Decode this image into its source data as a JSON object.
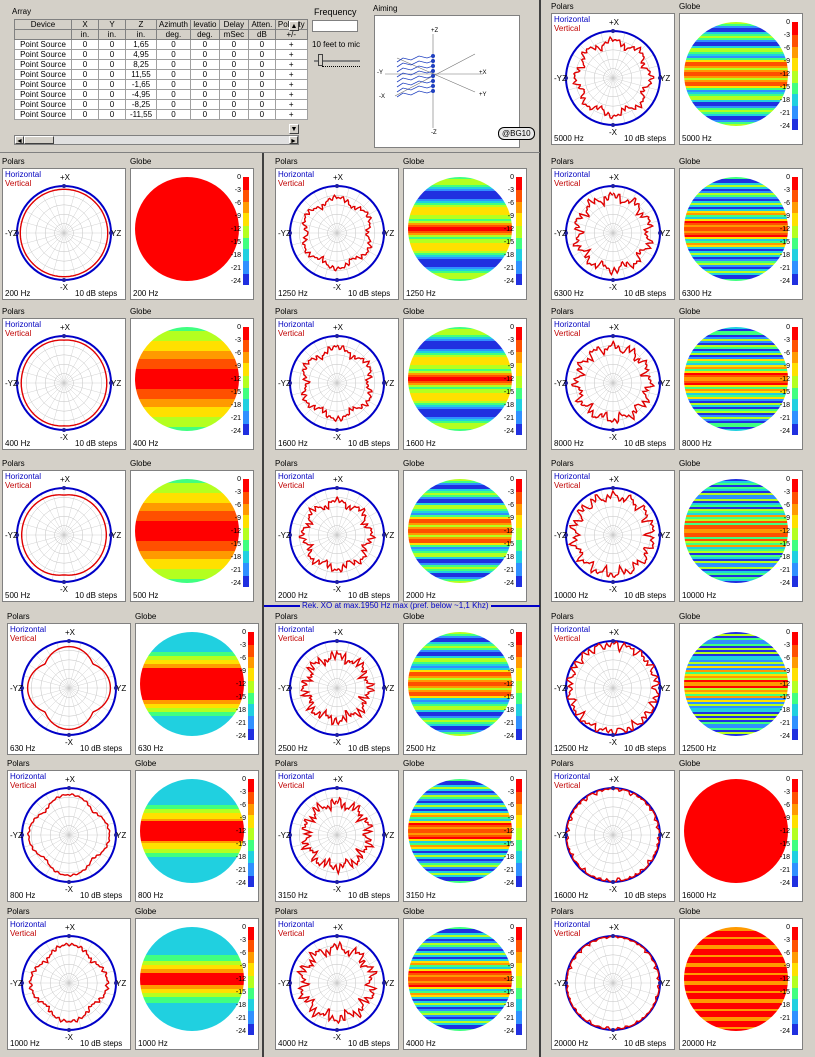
{
  "colors": {
    "horizontal": "#0000c8",
    "vertical": "#e00000",
    "bg": "#d4d0c8",
    "xo_line": "#0000c8"
  },
  "array": {
    "title": "Array",
    "headers": [
      "Device",
      "X",
      "Y",
      "Z",
      "Azimuth",
      "levatio",
      "Delay",
      "Atten.",
      "Polarity"
    ],
    "units": [
      "",
      "in.",
      "in.",
      "in.",
      "deg.",
      "deg.",
      "mSec",
      "dB",
      "+/-"
    ],
    "rows": [
      [
        "Point Source",
        "0",
        "0",
        "1,65",
        "0",
        "0",
        "0",
        "0",
        "+"
      ],
      [
        "Point Source",
        "0",
        "0",
        "4,95",
        "0",
        "0",
        "0",
        "0",
        "+"
      ],
      [
        "Point Source",
        "0",
        "0",
        "8,25",
        "0",
        "0",
        "0",
        "0",
        "+"
      ],
      [
        "Point Source",
        "0",
        "0",
        "11,55",
        "0",
        "0",
        "0",
        "0",
        "+"
      ],
      [
        "Point Source",
        "0",
        "0",
        "-1,65",
        "0",
        "0",
        "0",
        "0",
        "+"
      ],
      [
        "Point Source",
        "0",
        "0",
        "-4,95",
        "0",
        "0",
        "0",
        "0",
        "+"
      ],
      [
        "Point Source",
        "0",
        "0",
        "-8,25",
        "0",
        "0",
        "0",
        "0",
        "+"
      ],
      [
        "Point Source",
        "0",
        "0",
        "-11,55",
        "0",
        "0",
        "0",
        "0",
        "+"
      ]
    ]
  },
  "frequency": {
    "label": "Frequency",
    "value": "",
    "distance_label": "10 feet to mic"
  },
  "aiming": {
    "title": "Aiming",
    "badge": "@BG10",
    "axes": [
      "+Z",
      "-Y",
      "-X",
      "+X",
      "+Y",
      "-Z"
    ]
  },
  "labels": {
    "polars": "Polars",
    "globe": "Globe",
    "horizontal": "Horizontal",
    "vertical": "Vertical",
    "steps": "10 dB steps",
    "plus_x": "+X",
    "minus_x": "-X",
    "minus_yz": "-YZ",
    "yz": "YZ"
  },
  "colorbar_ticks": [
    "0",
    "-3",
    "-6",
    "-9",
    "-12",
    "-15",
    "-18",
    "-21",
    "-24"
  ],
  "xo_note": "Rek. XO at max.1950 Hz max (pref. below ~1,1 Khz)",
  "panels": [
    {
      "freq": "200 Hz"
    },
    {
      "freq": "400 Hz"
    },
    {
      "freq": "500 Hz"
    },
    {
      "freq": "630 Hz"
    },
    {
      "freq": "800 Hz"
    },
    {
      "freq": "1000 Hz"
    },
    {
      "freq": "1250 Hz"
    },
    {
      "freq": "1600 Hz"
    },
    {
      "freq": "2000 Hz"
    },
    {
      "freq": "2500 Hz"
    },
    {
      "freq": "3150 Hz"
    },
    {
      "freq": "4000 Hz"
    },
    {
      "freq": "5000 Hz"
    },
    {
      "freq": "6300 Hz"
    },
    {
      "freq": "8000 Hz"
    },
    {
      "freq": "10000 Hz"
    },
    {
      "freq": "12500 Hz"
    },
    {
      "freq": "16000 Hz"
    },
    {
      "freq": "20000 Hz"
    }
  ]
}
